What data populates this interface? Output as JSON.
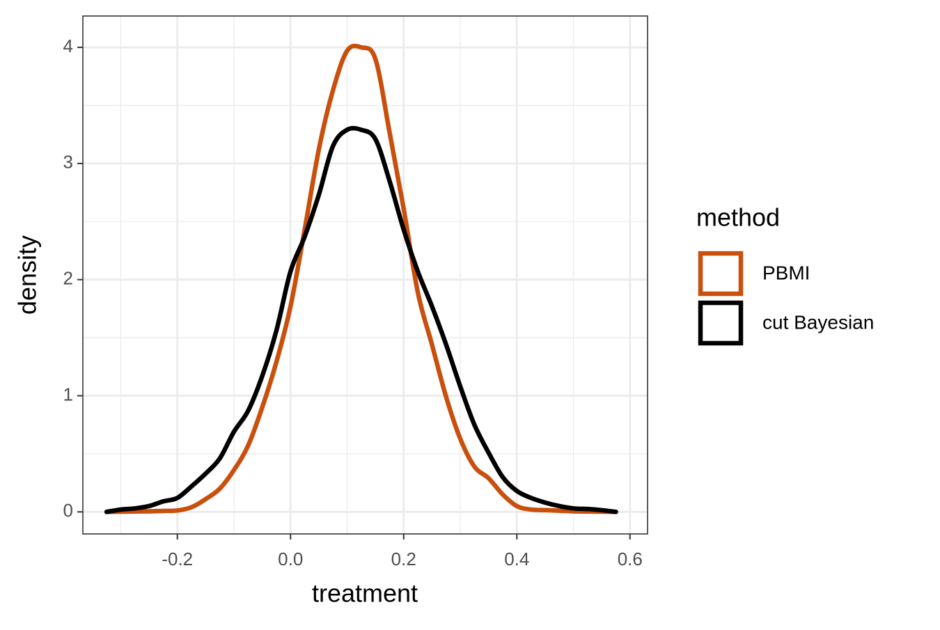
{
  "chart_data": {
    "type": "line",
    "x_label": "treatment",
    "y_label": "density",
    "legend_title": "method",
    "legend_position": "right",
    "grid": true,
    "xlim": [
      -0.367,
      0.631
    ],
    "ylim": [
      -0.19,
      4.27
    ],
    "xticks": [
      -0.2,
      {
        "value": 0,
        "label": "0.0"
      },
      0.2,
      0.4,
      0.6
    ],
    "yticks": [
      0,
      1,
      2,
      3,
      4
    ],
    "xminorticks": [
      -0.3,
      -0.1,
      0.1,
      0.3,
      0.5
    ],
    "yminorticks": [
      0.5,
      1.5,
      2.5,
      3.5
    ],
    "x": [
      -0.325,
      -0.3,
      -0.275,
      -0.25,
      -0.225,
      -0.2,
      -0.175,
      -0.15,
      -0.125,
      -0.1,
      -0.075,
      -0.05,
      -0.025,
      0,
      0.025,
      0.05,
      0.075,
      0.1,
      0.125,
      0.15,
      0.175,
      0.2,
      0.225,
      0.25,
      0.275,
      0.3,
      0.325,
      0.35,
      0.375,
      0.4,
      0.425,
      0.45,
      0.475,
      0.5,
      0.525,
      0.55,
      0.575
    ],
    "series": [
      {
        "name": "PBMI",
        "color": "#c94f0c",
        "values": [
          0,
          0.002,
          0.003,
          0.005,
          0.008,
          0.012,
          0.04,
          0.11,
          0.2,
          0.36,
          0.57,
          0.9,
          1.29,
          1.77,
          2.43,
          3.12,
          3.63,
          3.97,
          4.0,
          3.9,
          3.27,
          2.61,
          1.89,
          1.44,
          0.99,
          0.63,
          0.39,
          0.29,
          0.15,
          0.05,
          0.02,
          0.015,
          0.01,
          0.005,
          0.003,
          0.002,
          0
        ]
      },
      {
        "name": "cut Bayesian",
        "color": "#000000",
        "values": [
          0,
          0.02,
          0.03,
          0.05,
          0.09,
          0.12,
          0.22,
          0.33,
          0.46,
          0.69,
          0.87,
          1.17,
          1.56,
          2.07,
          2.37,
          2.73,
          3.15,
          3.29,
          3.29,
          3.21,
          2.85,
          2.43,
          2.07,
          1.77,
          1.44,
          1.08,
          0.75,
          0.51,
          0.3,
          0.18,
          0.12,
          0.08,
          0.05,
          0.03,
          0.025,
          0.015,
          0
        ]
      }
    ]
  }
}
